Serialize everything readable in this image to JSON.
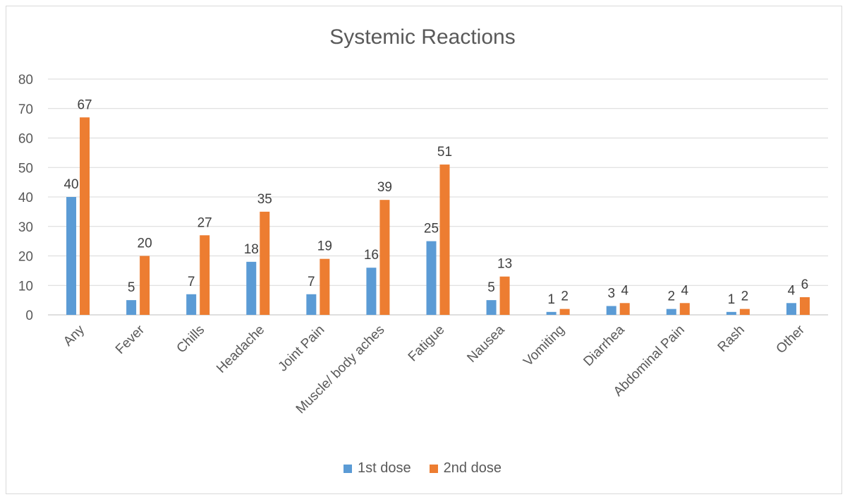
{
  "chart_data": {
    "type": "bar",
    "title": "Systemic Reactions",
    "xlabel": "",
    "ylabel": "",
    "ylim": [
      0,
      80
    ],
    "yticks": [
      0,
      10,
      20,
      30,
      40,
      50,
      60,
      70,
      80
    ],
    "categories": [
      "Any",
      "Fever",
      "Chills",
      "Headache",
      "Joint Pain",
      "Muscle/ body aches",
      "Fatigue",
      "Nausea",
      "Vomiting",
      "Diarrhea",
      "Abdominal Pain",
      "Rash",
      "Other"
    ],
    "series": [
      {
        "name": "1st dose",
        "color": "#5b9bd5",
        "values": [
          40,
          5,
          7,
          18,
          7,
          16,
          25,
          5,
          1,
          3,
          2,
          1,
          4
        ]
      },
      {
        "name": "2nd dose",
        "color": "#ed7d31",
        "values": [
          67,
          20,
          27,
          35,
          19,
          39,
          51,
          13,
          2,
          4,
          4,
          2,
          6
        ]
      }
    ],
    "grid": true,
    "legend_position": "bottom"
  }
}
